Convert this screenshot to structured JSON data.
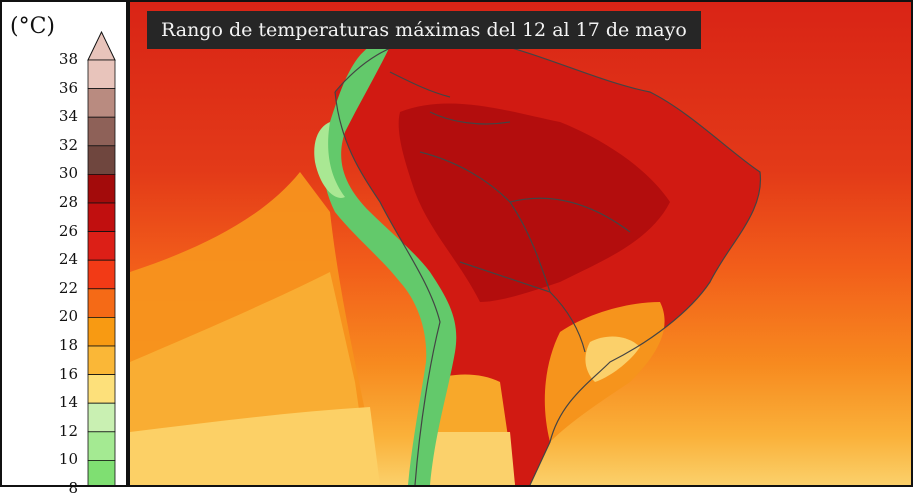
{
  "title": "Rango de temperaturas máximas del 12 al 17 de mayo",
  "legend": {
    "unit": "(°C)",
    "ticks": [
      "38",
      "36",
      "34",
      "32",
      "30",
      "28",
      "26",
      "24",
      "22",
      "20",
      "18",
      "16",
      "14",
      "12",
      "10",
      "8"
    ],
    "bins": [
      {
        "low": 36,
        "color": "#e8c4bb"
      },
      {
        "low": 34,
        "color": "#b98b80"
      },
      {
        "low": 32,
        "color": "#8e6158"
      },
      {
        "low": 30,
        "color": "#6f463e"
      },
      {
        "low": 28,
        "color": "#a30b0b"
      },
      {
        "low": 26,
        "color": "#c10f0f"
      },
      {
        "low": 24,
        "color": "#dc1f17"
      },
      {
        "low": 22,
        "color": "#f23a16"
      },
      {
        "low": 20,
        "color": "#f56a16"
      },
      {
        "low": 18,
        "color": "#f89a12"
      },
      {
        "low": 16,
        "color": "#fab737"
      },
      {
        "low": 14,
        "color": "#fde07a"
      },
      {
        "low": 12,
        "color": "#c9f0b2"
      },
      {
        "low": 10,
        "color": "#a4ea92"
      },
      {
        "low": 8,
        "color": "#7fdf72"
      }
    ]
  },
  "colors": {
    "ocean_north": "#dc2a18",
    "ocean_mid": "#f2571a",
    "ocean_south": "#f9a62b",
    "continent_hot": "#c81212",
    "andes": "#63c96b",
    "border": "#444444"
  }
}
